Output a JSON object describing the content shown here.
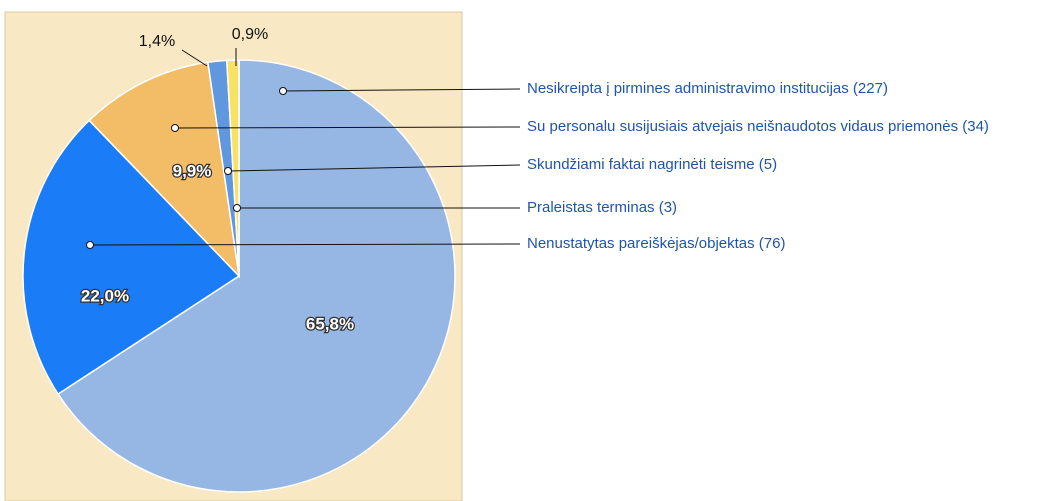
{
  "chart_data": {
    "type": "pie",
    "categories": [
      "Nesikreipta į pirmines administravimo institucijas (227)",
      "Nenustatytas pareiškėjas/objektas (76)",
      "Su personalu susijusiais atvejais neišnaudotos vidaus priemonės (34)",
      "Skundžiami faktai nagrinėti teisme (5)",
      "Praleistas terminas (3)"
    ],
    "values": [
      65.8,
      22.0,
      9.9,
      1.4,
      0.9
    ],
    "value_labels": [
      "65,8%",
      "22,0%",
      "9,9%",
      "1,4%",
      "0,9%"
    ],
    "colors": [
      "#96b6e4",
      "#1a7cf7",
      "#f2bd66",
      "#5f98de",
      "#f7e264"
    ]
  }
}
